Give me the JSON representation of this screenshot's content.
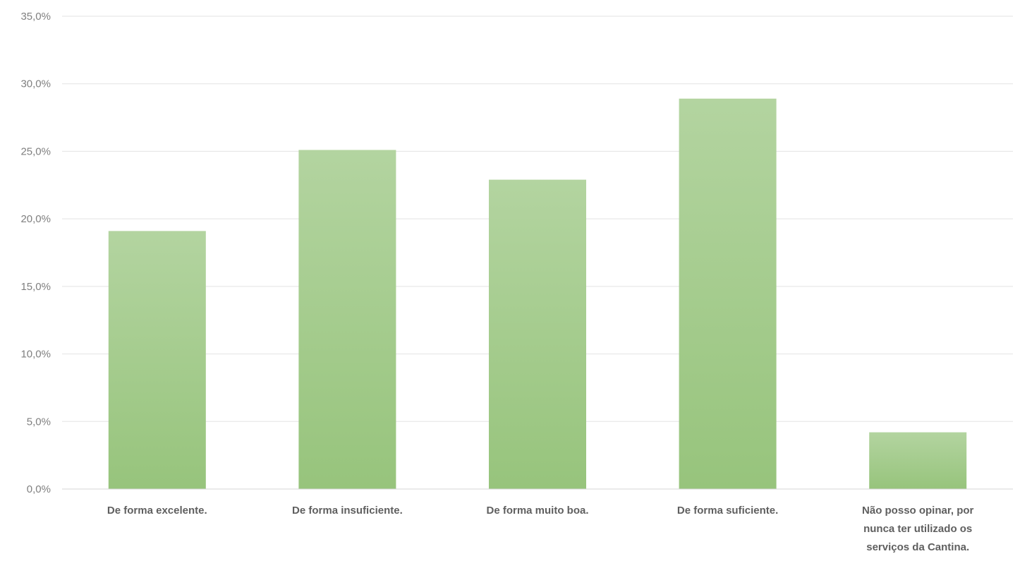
{
  "chart_data": {
    "type": "bar",
    "title": "",
    "xlabel": "",
    "ylabel": "",
    "ylim": [
      0,
      35
    ],
    "yticks": [
      0,
      5,
      10,
      15,
      20,
      25,
      30,
      35
    ],
    "ytick_labels": [
      "0,0%",
      "5,0%",
      "10,0%",
      "15,0%",
      "20,0%",
      "25,0%",
      "30,0%",
      "35,0%"
    ],
    "grid": true,
    "legend": "none",
    "categories": [
      "De forma excelente.",
      "De forma insuficiente.",
      "De forma muito boa.",
      "De forma suficiente.",
      "Não posso opinar, por nunca ter utilizado os serviços da Cantina."
    ],
    "category_label_lines": [
      [
        "De forma excelente."
      ],
      [
        "De forma insuficiente."
      ],
      [
        "De forma muito boa."
      ],
      [
        "De forma suficiente."
      ],
      [
        "Não posso opinar, por",
        "nunca ter utilizado os",
        "serviços da Cantina."
      ]
    ],
    "values": [
      19.1,
      25.1,
      22.9,
      28.9,
      4.2
    ],
    "colors": {
      "bar_top": "#b3d4a0",
      "bar_bottom": "#97c47c",
      "grid": "#e3e3e3",
      "tick_text": "#7f7f7f",
      "category_text": "#5f5f5f"
    }
  }
}
